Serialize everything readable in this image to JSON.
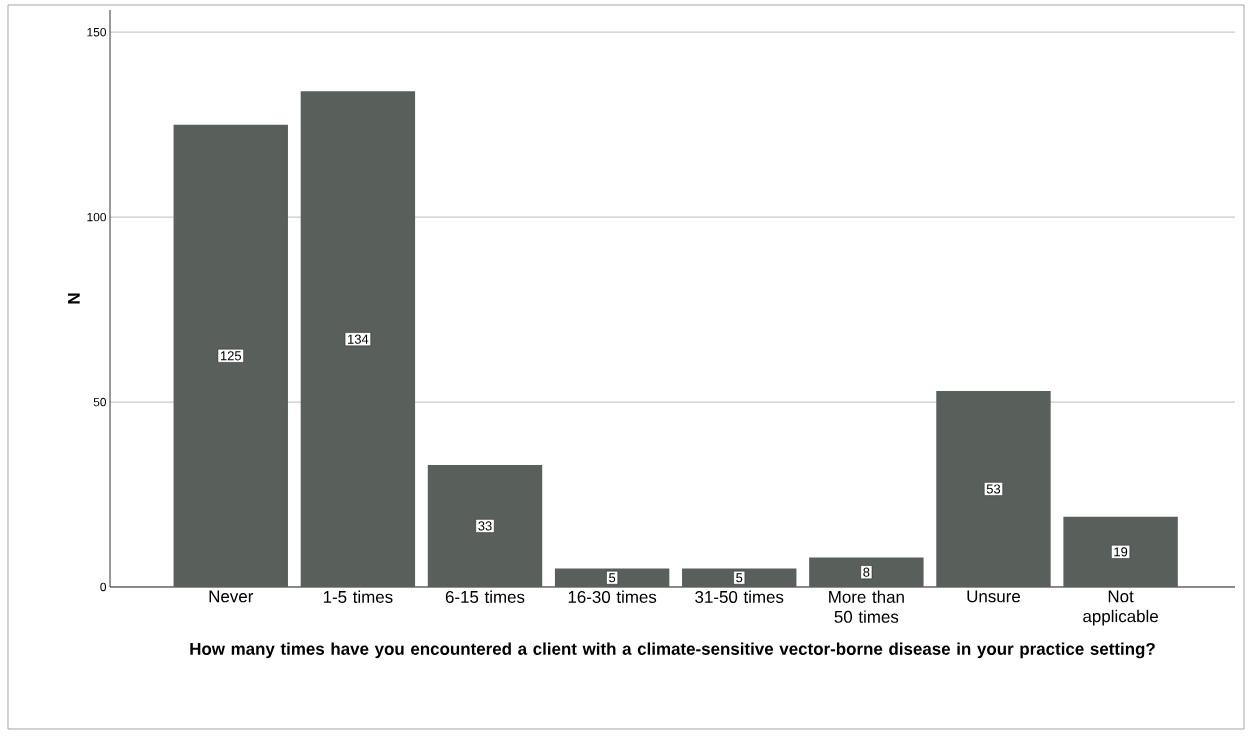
{
  "chart_data": {
    "type": "bar",
    "xlabel": "How many times have you encountered a client with a climate-sensitive vector-borne disease in your practice setting?",
    "ylabel": "N",
    "categories": [
      "Never",
      "1-5 times",
      "6-15 times",
      "16-30 times",
      "31-50 times",
      "More than 50 times",
      "Unsure",
      "Not applicable"
    ],
    "values": [
      125,
      134,
      33,
      5,
      5,
      8,
      53,
      19
    ],
    "color": "#59605b",
    "ylim": [
      0,
      156
    ],
    "yticks": [
      0,
      50,
      100,
      150
    ],
    "grid": "y",
    "data_labels": true
  }
}
